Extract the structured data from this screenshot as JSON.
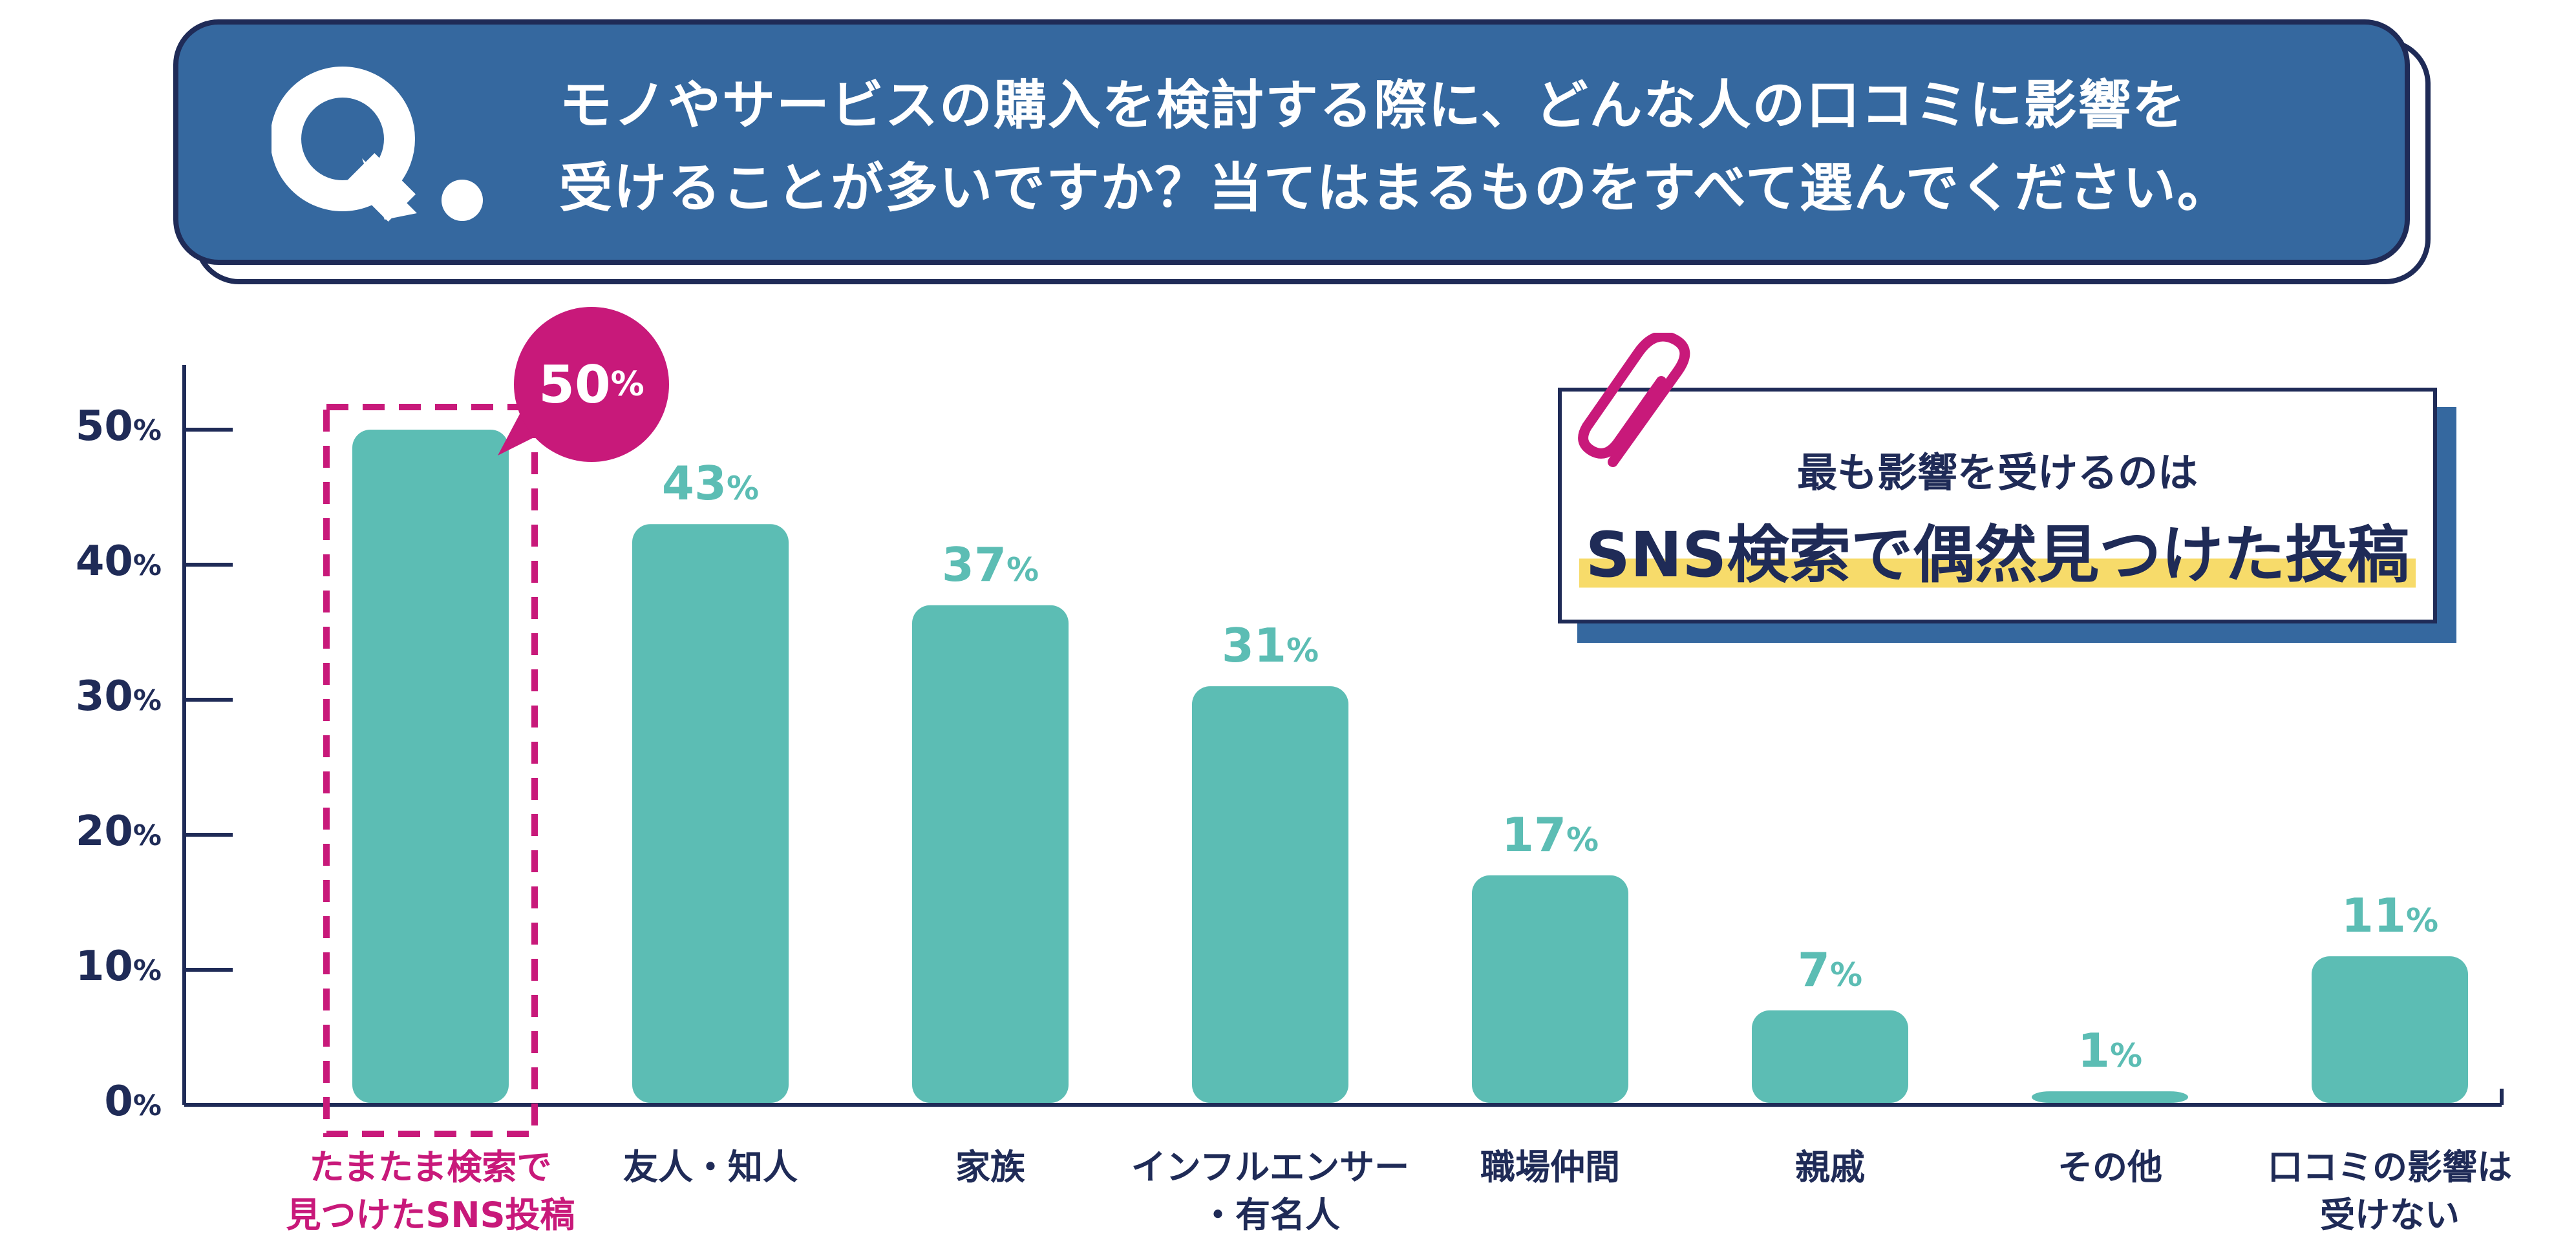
{
  "question": {
    "mark": "Q",
    "line1": "モノやサービスの購入を検討する際に、どんな人の口コミに影響を",
    "line2": "受けることが多いですか？当てはまるものをすべて選んでください。"
  },
  "callout": {
    "line1": "最も影響を受けるのは",
    "line2": "SNS検索で偶然見つけた投稿",
    "icon": "paperclip-icon"
  },
  "highlight": {
    "value_label": "50",
    "unit": "%"
  },
  "colors": {
    "bar": "#5cbdb4",
    "highlight": "#c8197a",
    "navy": "#1f2b57",
    "banner": "#35689f",
    "marker": "#f7db6a"
  },
  "chart_data": {
    "type": "bar",
    "unit": "%",
    "ylim": [
      0,
      50
    ],
    "yticks": [
      "0",
      "10",
      "20",
      "30",
      "40",
      "50"
    ],
    "grid": false,
    "categories": [
      [
        "たまたま検索で",
        "見つけたSNS投稿"
      ],
      [
        "友人・知人"
      ],
      [
        "家族"
      ],
      [
        "インフルエンサー",
        "・有名人"
      ],
      [
        "職場仲間"
      ],
      [
        "親戚"
      ],
      [
        "その他"
      ],
      [
        "口コミの影響は",
        "受けない"
      ]
    ],
    "values": [
      50,
      43,
      37,
      31,
      17,
      7,
      1,
      11
    ],
    "highlighted_index": 0
  }
}
